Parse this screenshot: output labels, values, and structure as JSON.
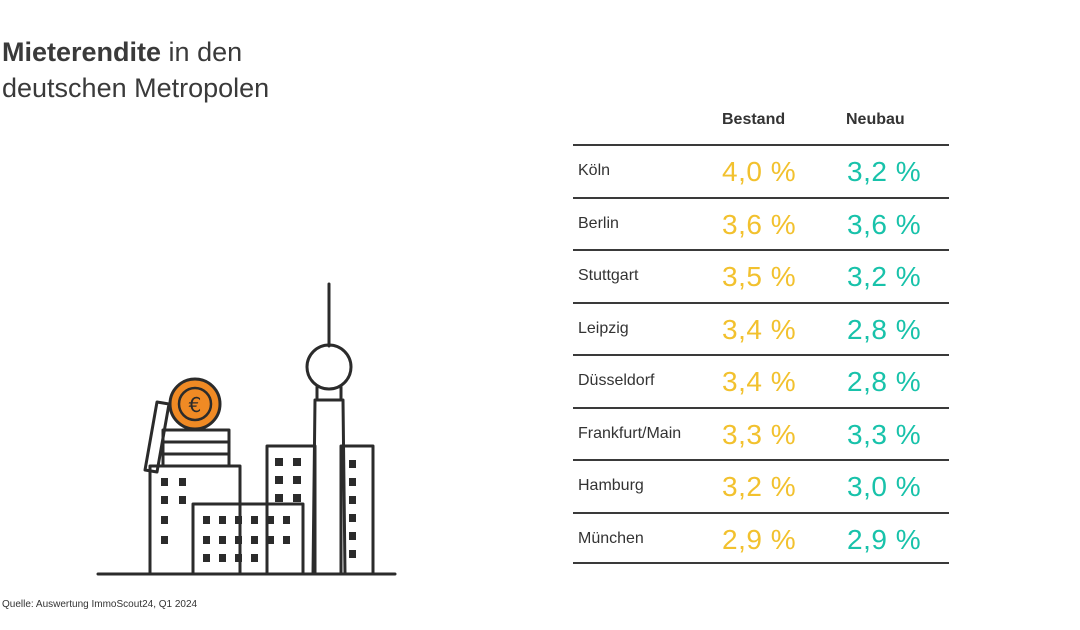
{
  "title": {
    "bold": "Mieterendite",
    "rest": " in den",
    "line2": "deutschen Metropolen"
  },
  "colors": {
    "bestand": "#f2c12e",
    "neubau": "#18c2aa",
    "line": "#3a3a3a",
    "coin": "#f08a24"
  },
  "icon": "city-skyline-with-euro-coin-icon",
  "chart_data": {
    "type": "table",
    "columns": [
      "Bestand",
      "Neubau"
    ],
    "rows": [
      {
        "city": "Köln",
        "bestand": "4,0 %",
        "neubau": "3,2 %"
      },
      {
        "city": "Berlin",
        "bestand": "3,6 %",
        "neubau": "3,6 %"
      },
      {
        "city": "Stuttgart",
        "bestand": "3,5 %",
        "neubau": "3,2 %"
      },
      {
        "city": "Leipzig",
        "bestand": "3,4 %",
        "neubau": "2,8 %"
      },
      {
        "city": "Düsseldorf",
        "bestand": "3,4 %",
        "neubau": "2,8 %"
      },
      {
        "city": "Frankfurt/Main",
        "bestand": "3,3 %",
        "neubau": "3,3 %"
      },
      {
        "city": "Hamburg",
        "bestand": "3,2 %",
        "neubau": "3,0 %"
      },
      {
        "city": "München",
        "bestand": "2,9 %",
        "neubau": "2,9 %"
      }
    ]
  },
  "source": "Quelle: Auswertung ImmoScout24, Q1 2024"
}
